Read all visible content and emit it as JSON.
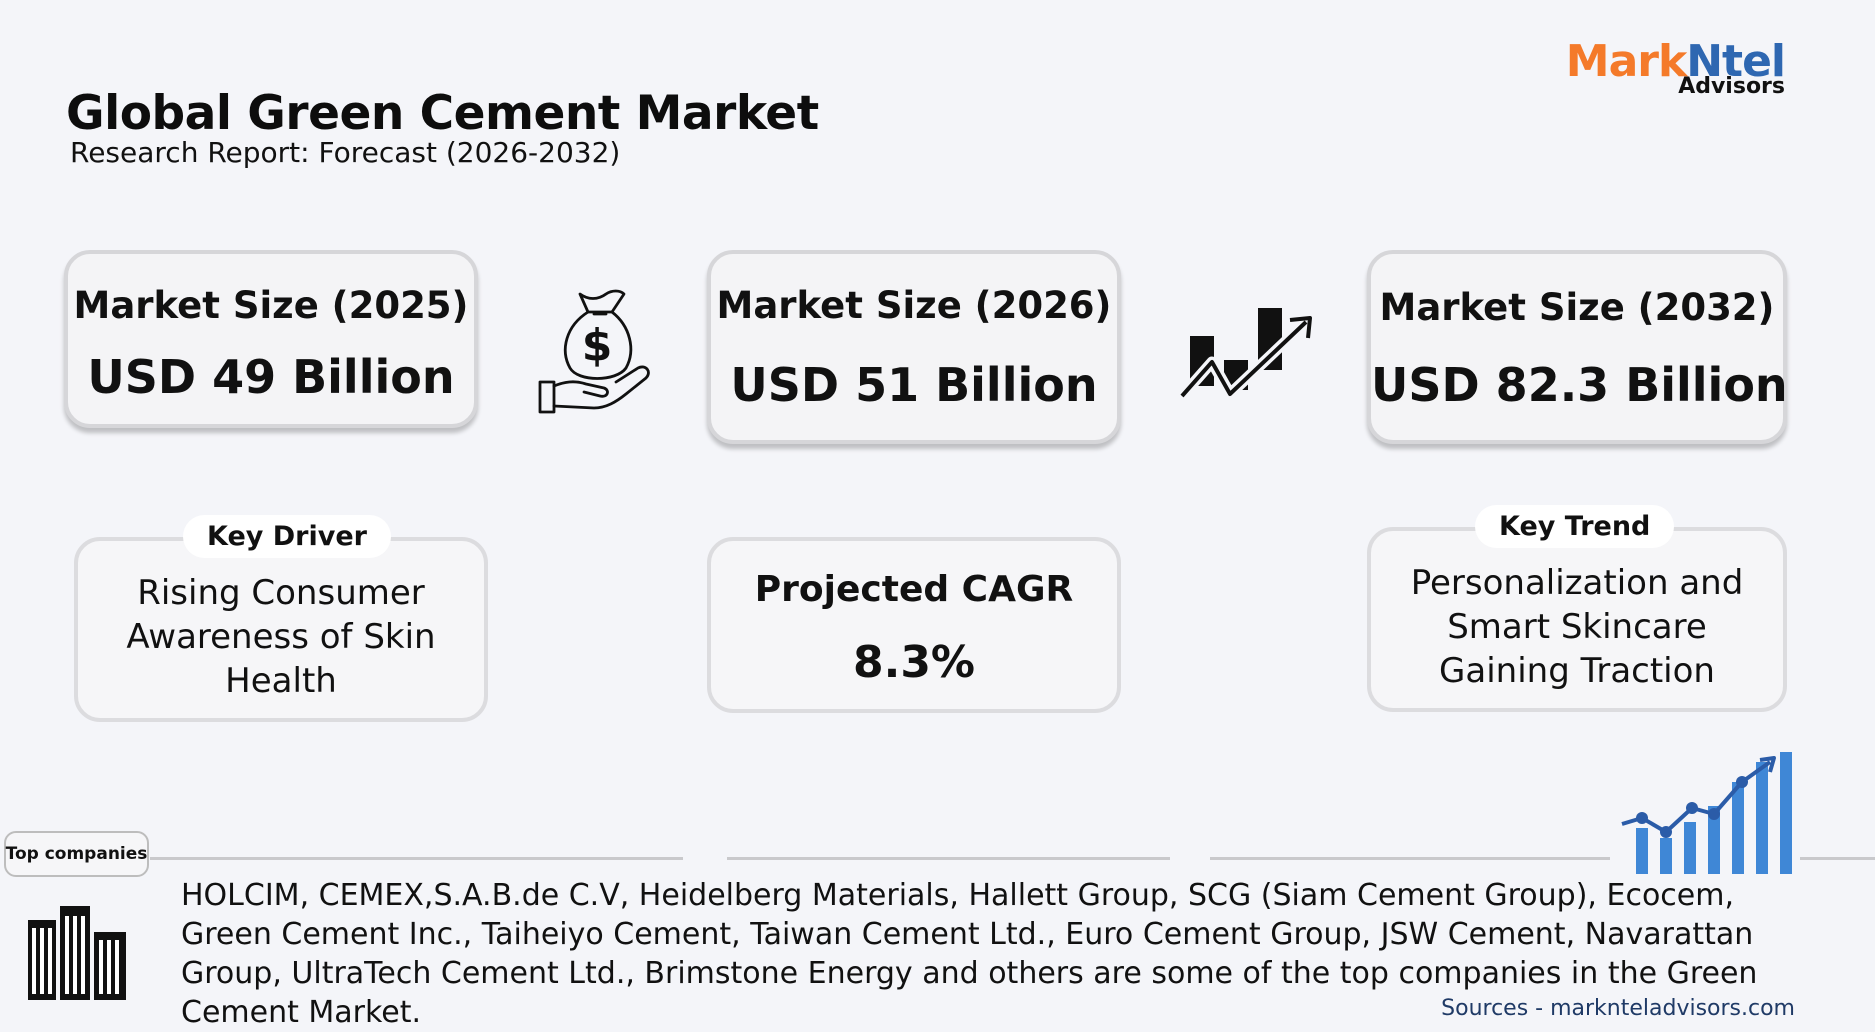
{
  "header": {
    "title": "Global Green Cement Market",
    "subtitle": "Research Report: Forecast (2026-2032)"
  },
  "logo": {
    "part1": "Mark",
    "part2": "Ntel",
    "part3": "Advisors",
    "colors": {
      "orange": "#f47a2a",
      "blue": "#2e67b1"
    }
  },
  "market_sizes": [
    {
      "label": "Market Size (2025)",
      "value": "USD 49 Billion"
    },
    {
      "label": "Market Size (2026)",
      "value": "USD 51 Billion"
    },
    {
      "label": "Market Size (2032)",
      "value": "USD 82.3 Billion"
    }
  ],
  "key_driver": {
    "tag": "Key Driver",
    "text": "Rising Consumer Awareness of Skin Health"
  },
  "cagr": {
    "label": "Projected CAGR",
    "value": "8.3%"
  },
  "key_trend": {
    "tag": "Key Trend",
    "text": "Personalization and Smart Skincare Gaining Traction"
  },
  "companies": {
    "tag": "Top companies",
    "text": "HOLCIM, CEMEX,S.A.B.de C.V, Heidelberg Materials, Hallett Group, SCG (Siam Cement Group), Ecocem, Green Cement Inc., Taiheiyo Cement, Taiwan Cement Ltd., Euro Cement Group, JSW Cement, Navarattan Group, UltraTech Cement Ltd., Brimstone Energy and others are some of the top companies in the Green Cement Market."
  },
  "sources": "Sources - marknteladvisors.com",
  "icons": {
    "money": "money-bag-hand-icon",
    "growth": "growth-arrow-icon",
    "buildings": "buildings-icon",
    "chart": "bar-chart-trend-icon"
  },
  "colors": {
    "background": "#f4f5f9",
    "chart_blue": "#3f87d6"
  }
}
